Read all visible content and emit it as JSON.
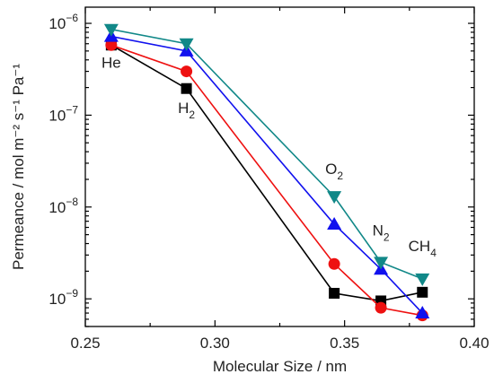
{
  "chart_data": {
    "type": "line",
    "xlabel": "Molecular Size / nm",
    "ylabel": "Permeance / mol m⁻² s⁻¹ Pa⁻¹",
    "xlim": [
      0.25,
      0.4
    ],
    "ylim": [
      5e-10,
      1.5e-06
    ],
    "yscale": "log",
    "grid": false,
    "x_ticks": [
      "0.25",
      "0.30",
      "0.35",
      "0.40"
    ],
    "y_ticks": [
      {
        "value": 1e-09,
        "base": "10",
        "exp": "−9"
      },
      {
        "value": 1e-08,
        "base": "10",
        "exp": "−8"
      },
      {
        "value": 1e-07,
        "base": "10",
        "exp": "−7"
      },
      {
        "value": 1e-06,
        "base": "10",
        "exp": "−6"
      }
    ],
    "gas_labels": [
      {
        "main": "He",
        "sub": "",
        "x": 0.26,
        "y": 3.3e-07
      },
      {
        "main": "H",
        "sub": "2",
        "x": 0.289,
        "y": 1.05e-07
      },
      {
        "main": "O",
        "sub": "2",
        "x": 0.346,
        "y": 2.3e-08
      },
      {
        "main": "N",
        "sub": "2",
        "x": 0.364,
        "y": 4.9e-09
      },
      {
        "main": "CH",
        "sub": "4",
        "x": 0.38,
        "y": 3.3e-09
      }
    ],
    "series": [
      {
        "marker": "square",
        "color": "#000000",
        "x": [
          0.26,
          0.289,
          0.346,
          0.364,
          0.38
        ],
        "y": [
          5.8e-07,
          1.95e-07,
          1.15e-09,
          9.5e-10,
          1.18e-09
        ]
      },
      {
        "marker": "circle",
        "color": "#ee1111",
        "x": [
          0.26,
          0.289,
          0.346,
          0.364,
          0.38
        ],
        "y": [
          5.8e-07,
          3e-07,
          2.4e-09,
          8e-10,
          6.6e-10
        ]
      },
      {
        "marker": "triangle-up",
        "color": "#1111ee",
        "x": [
          0.26,
          0.289,
          0.346,
          0.364,
          0.38
        ],
        "y": [
          7.2e-07,
          5e-07,
          6.5e-09,
          2.1e-09,
          7e-10
        ]
      },
      {
        "marker": "triangle-down",
        "color": "#118888",
        "x": [
          0.26,
          0.289,
          0.346,
          0.364,
          0.38
        ],
        "y": [
          8.6e-07,
          6e-07,
          1.3e-08,
          2.5e-09,
          1.65e-09
        ]
      }
    ]
  }
}
